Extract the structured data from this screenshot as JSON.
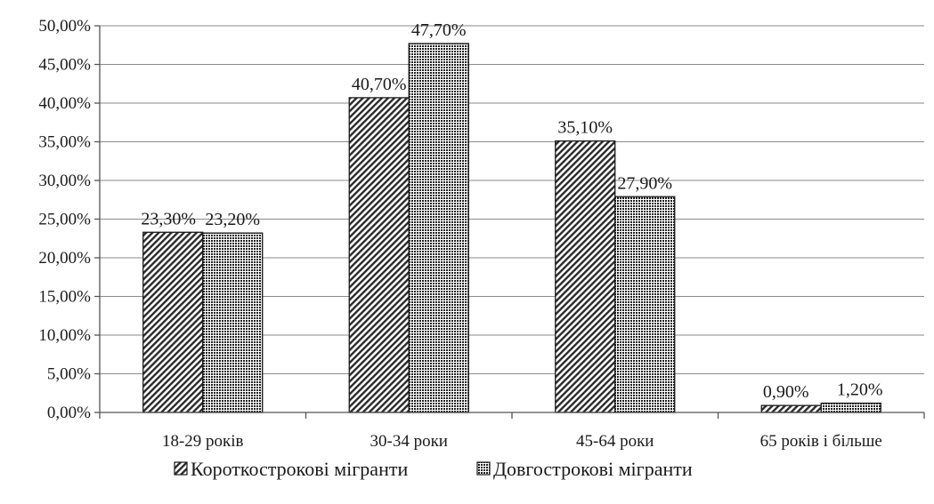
{
  "chart_data": {
    "type": "bar",
    "categories": [
      "18-29 років",
      "30-34 роки",
      "45-64 роки",
      "65 років і більше"
    ],
    "series": [
      {
        "name": "Короткострокові мігранти",
        "values": [
          23.3,
          40.7,
          35.1,
          0.9
        ],
        "labels": [
          "23,30%",
          "40,70%",
          "35,10%",
          "0,90%"
        ],
        "pattern": "diagonal-hatch",
        "color": "#1a1a1a"
      },
      {
        "name": "Довгострокові мігранти",
        "values": [
          23.2,
          47.7,
          27.9,
          1.2
        ],
        "labels": [
          "23,20%",
          "47,70%",
          "27,90%",
          "1,20%"
        ],
        "pattern": "dense-dot",
        "color": "#1a1a1a"
      }
    ],
    "ylim": [
      0,
      50
    ],
    "yticks": [
      0,
      5,
      10,
      15,
      20,
      25,
      30,
      35,
      40,
      45,
      50
    ],
    "ytick_labels": [
      "0,00%",
      "5,00%",
      "10,00%",
      "15,00%",
      "20,00%",
      "25,00%",
      "30,00%",
      "35,00%",
      "40,00%",
      "45,00%",
      "50,00%"
    ],
    "grid": true,
    "legend_position": "bottom"
  }
}
